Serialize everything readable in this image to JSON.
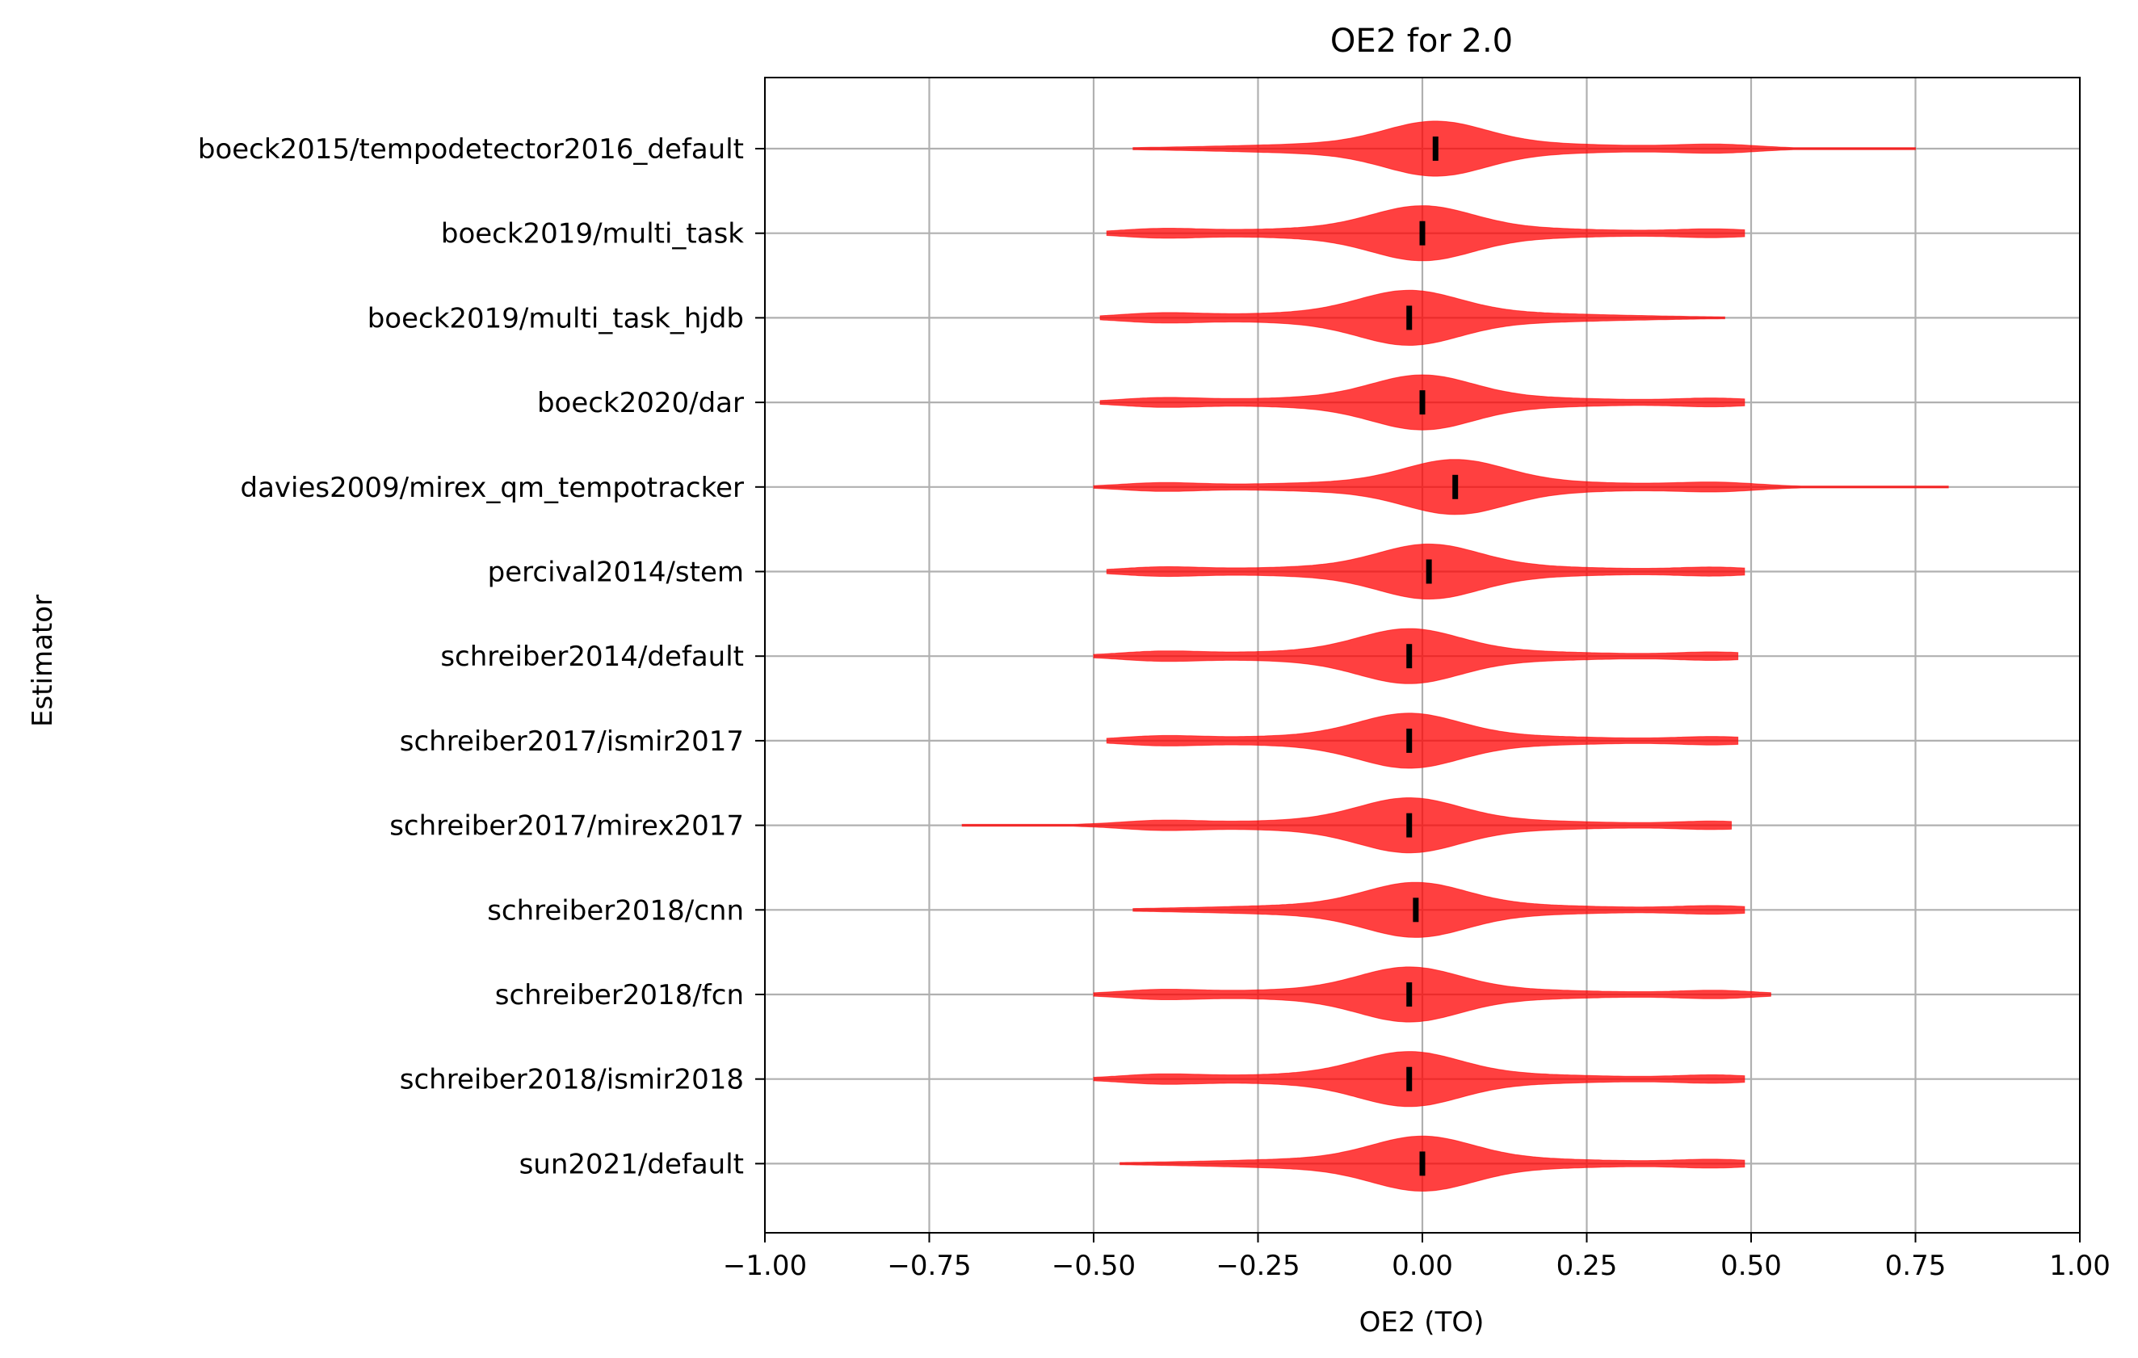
{
  "chart_data": {
    "type": "violin",
    "title": "OE2 for 2.0",
    "xlabel": "OE2 (TO)",
    "ylabel": "Estimator",
    "xlim": [
      -1.0,
      1.0
    ],
    "xticks": [
      -1.0,
      -0.75,
      -0.5,
      -0.25,
      0.0,
      0.25,
      0.5,
      0.75,
      1.0
    ],
    "xtick_labels": [
      "−1.00",
      "−0.75",
      "−0.50",
      "−0.25",
      "0.00",
      "0.25",
      "0.50",
      "0.75",
      "1.00"
    ],
    "grid": true,
    "color": "#ff0000",
    "median_color": "#000000",
    "estimators": [
      {
        "name": "boeck2015/tempodetector2016_default",
        "min": -0.44,
        "max": 0.75,
        "median": 0.02
      },
      {
        "name": "boeck2019/multi_task",
        "min": -0.48,
        "max": 0.49,
        "median": 0.0
      },
      {
        "name": "boeck2019/multi_task_hjdb",
        "min": -0.49,
        "max": 0.46,
        "median": -0.02
      },
      {
        "name": "boeck2020/dar",
        "min": -0.49,
        "max": 0.49,
        "median": 0.0
      },
      {
        "name": "davies2009/mirex_qm_tempotracker",
        "min": -0.5,
        "max": 0.8,
        "median": 0.05
      },
      {
        "name": "percival2014/stem",
        "min": -0.48,
        "max": 0.49,
        "median": 0.01
      },
      {
        "name": "schreiber2014/default",
        "min": -0.5,
        "max": 0.48,
        "median": -0.02
      },
      {
        "name": "schreiber2017/ismir2017",
        "min": -0.48,
        "max": 0.48,
        "median": -0.02
      },
      {
        "name": "schreiber2017/mirex2017",
        "min": -0.7,
        "max": 0.47,
        "median": -0.02
      },
      {
        "name": "schreiber2018/cnn",
        "min": -0.44,
        "max": 0.49,
        "median": -0.01
      },
      {
        "name": "schreiber2018/fcn",
        "min": -0.5,
        "max": 0.53,
        "median": -0.02
      },
      {
        "name": "schreiber2018/ismir2018",
        "min": -0.5,
        "max": 0.49,
        "median": -0.02
      },
      {
        "name": "sun2021/default",
        "min": -0.46,
        "max": 0.49,
        "median": 0.0
      }
    ]
  }
}
